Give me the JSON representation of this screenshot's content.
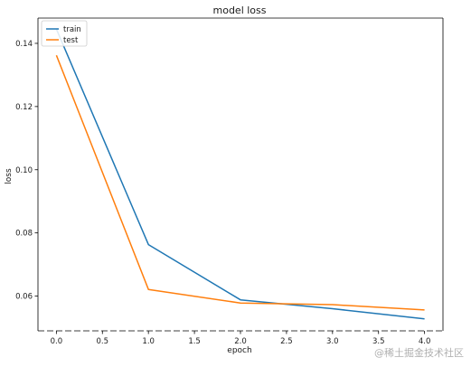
{
  "chart_data": {
    "type": "line",
    "title": "model loss",
    "xlabel": "epoch",
    "ylabel": "loss",
    "x": [
      0,
      1,
      2,
      3,
      4
    ],
    "xlim": [
      -0.2,
      4.2
    ],
    "ylim": [
      0.049,
      0.148
    ],
    "xticks": [
      "0.0",
      "0.5",
      "1.0",
      "1.5",
      "2.0",
      "2.5",
      "3.0",
      "3.5",
      "4.0"
    ],
    "yticks": [
      "0.06",
      "0.08",
      "0.10",
      "0.12",
      "0.14"
    ],
    "grid": false,
    "legend_position": "top-left",
    "series": [
      {
        "name": "train",
        "color": "#1f77b4",
        "values": [
          0.1445,
          0.0763,
          0.0588,
          0.056,
          0.0528
        ]
      },
      {
        "name": "test",
        "color": "#ff7f0e",
        "values": [
          0.1362,
          0.0621,
          0.0578,
          0.0573,
          0.0556
        ]
      }
    ]
  },
  "watermark": "@稀土掘金技术社区"
}
